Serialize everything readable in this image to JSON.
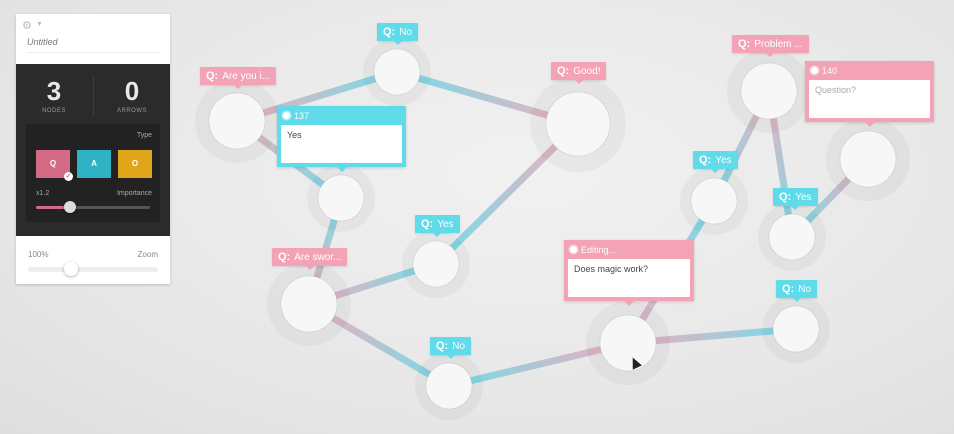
{
  "panel": {
    "title": "Untitled",
    "nodes_count": "3",
    "nodes_label": "NODES",
    "arrows_count": "0",
    "arrows_label": "ARROWS",
    "type_label": "Type",
    "type_q": "Q",
    "type_a": "A",
    "type_o": "O",
    "importance_value": "x1.2",
    "importance_label": "Importance",
    "importance_fraction": 0.3,
    "zoom_value": "100%",
    "zoom_label": "Zoom",
    "zoom_fraction": 0.33
  },
  "colors": {
    "question": "#f4a3b6",
    "answer": "#5fdbe9",
    "open": "#e0a51a"
  },
  "tags": [
    {
      "kind": "q",
      "prefix": "Q:",
      "text": "Are you i..."
    },
    {
      "kind": "a",
      "prefix": "Q:",
      "text": "No"
    },
    {
      "kind": "q",
      "prefix": "Q:",
      "text": "Good!"
    },
    {
      "kind": "q",
      "prefix": "Q:",
      "text": "Are swor..."
    },
    {
      "kind": "a",
      "prefix": "Q:",
      "text": "Yes"
    },
    {
      "kind": "a",
      "prefix": "Q:",
      "text": "No"
    },
    {
      "kind": "q",
      "prefix": "Q:",
      "text": "Problem ..."
    },
    {
      "kind": "a",
      "prefix": "Q:",
      "text": "Yes"
    },
    {
      "kind": "a",
      "prefix": "Q:",
      "text": "Yes"
    },
    {
      "kind": "a",
      "prefix": "Q:",
      "text": "No"
    }
  ],
  "editors": [
    {
      "kind": "a",
      "id": "137",
      "body": "Yes",
      "placeholder": ""
    },
    {
      "kind": "q",
      "id": "140",
      "body": "",
      "placeholder": "Question?"
    },
    {
      "kind": "q",
      "id": "Editing...",
      "body": "Does magic work?",
      "placeholder": ""
    }
  ]
}
